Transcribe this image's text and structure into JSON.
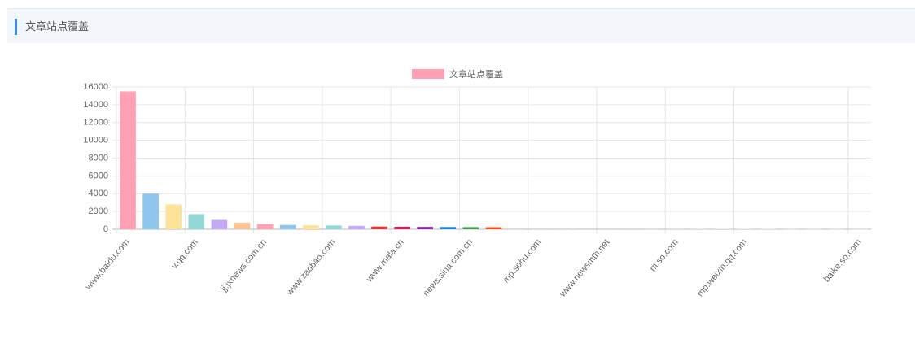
{
  "header": {
    "title": "文章站点覆盖"
  },
  "chart_data": {
    "type": "bar",
    "categories": [
      "www.baidu.com",
      null,
      null,
      "v.qq.com",
      null,
      null,
      "jj.jxnews.com.cn",
      null,
      null,
      "www.zaobao.com",
      null,
      null,
      "www.mala.cn",
      null,
      null,
      "news.sina.com.cn",
      null,
      null,
      "mp.sohu.com",
      null,
      null,
      "www.newsmth.net",
      null,
      null,
      "m.so.com",
      null,
      null,
      "mp.weixin.qq.com",
      null,
      null,
      null,
      null,
      "baike.so.com"
    ],
    "series": [
      {
        "name": "文章站点覆盖",
        "color": "#ffa0b4",
        "bar_colors": [
          "#ffa0b4",
          "#8ec6ef",
          "#fde29a",
          "#95d8d8",
          "#c4a9f7",
          "#fcc598",
          "#ffa0b4",
          "#8ec6ef",
          "#fde29a",
          "#95d8d8",
          "#c4a9f7",
          "#e53935",
          "#d81b60",
          "#8e24aa",
          "#1e88e5",
          "#43a047",
          "#f4511e",
          "#e0e0e0",
          "#e0e0e0",
          "#e0e0e0",
          "#e0e0e0",
          "#e0e0e0",
          "#e0e0e0",
          "#e0e0e0",
          "#e0e0e0",
          "#e0e0e0",
          "#e0e0e0",
          "#e0e0e0",
          "#e0e0e0",
          "#e0e0e0",
          "#e0e0e0",
          "#e0e0e0",
          "#e0e0e0"
        ],
        "values": [
          15500,
          4000,
          2800,
          1700,
          1050,
          750,
          580,
          480,
          450,
          430,
          380,
          300,
          280,
          260,
          250,
          240,
          230,
          150,
          140,
          130,
          120,
          110,
          90,
          80,
          70,
          60,
          55,
          50,
          40,
          30,
          20,
          15,
          10
        ]
      }
    ],
    "ylim": [
      0,
      16000
    ],
    "yticks": [
      0,
      2000,
      4000,
      6000,
      8000,
      10000,
      12000,
      14000,
      16000
    ],
    "grid": true,
    "legend": "top"
  }
}
